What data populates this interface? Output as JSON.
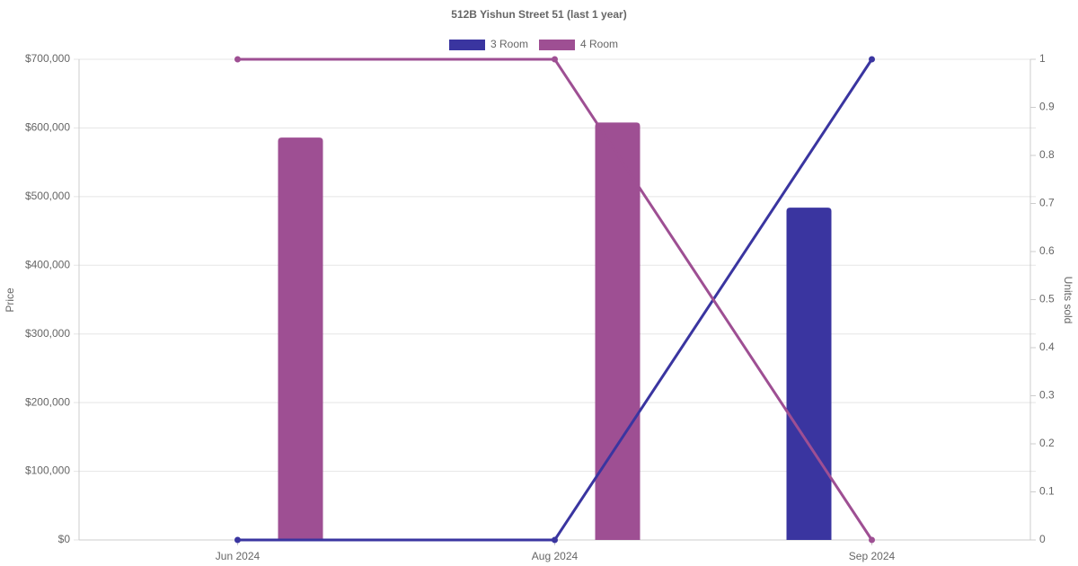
{
  "chart_data": {
    "type": "bar-line",
    "title": "512B Yishun Street 51 (last 1 year)",
    "y_label": "Price",
    "y2_label": "Units sold",
    "categories": [
      "Jun 2024",
      "Aug 2024",
      "Sep 2024"
    ],
    "series": [
      {
        "name": "3 Room",
        "color": "#3a35a0",
        "values": [
          null,
          null,
          484000
        ],
        "units_sold": {
          "axis": "y2",
          "values": [
            0,
            0,
            1
          ]
        }
      },
      {
        "name": "4 Room",
        "color": "#9e4f93",
        "values": [
          586000,
          608000,
          null
        ],
        "units_sold": {
          "axis": "y2",
          "values": [
            1,
            1,
            0
          ]
        }
      }
    ],
    "ylim": [
      0,
      700000
    ],
    "yticks": [
      {
        "value": 0,
        "label": "$0"
      },
      {
        "value": 100000,
        "label": "$100,000"
      },
      {
        "value": 200000,
        "label": "$200,000"
      },
      {
        "value": 300000,
        "label": "$300,000"
      },
      {
        "value": 400000,
        "label": "$400,000"
      },
      {
        "value": 500000,
        "label": "$500,000"
      },
      {
        "value": 600000,
        "label": "$600,000"
      },
      {
        "value": 700000,
        "label": "$700,000"
      }
    ],
    "y2lim": [
      0,
      1
    ],
    "y2ticks": [
      0,
      0.1,
      0.2,
      0.3,
      0.4,
      0.5,
      0.6,
      0.7,
      0.8,
      0.9,
      1
    ],
    "grid": true
  }
}
